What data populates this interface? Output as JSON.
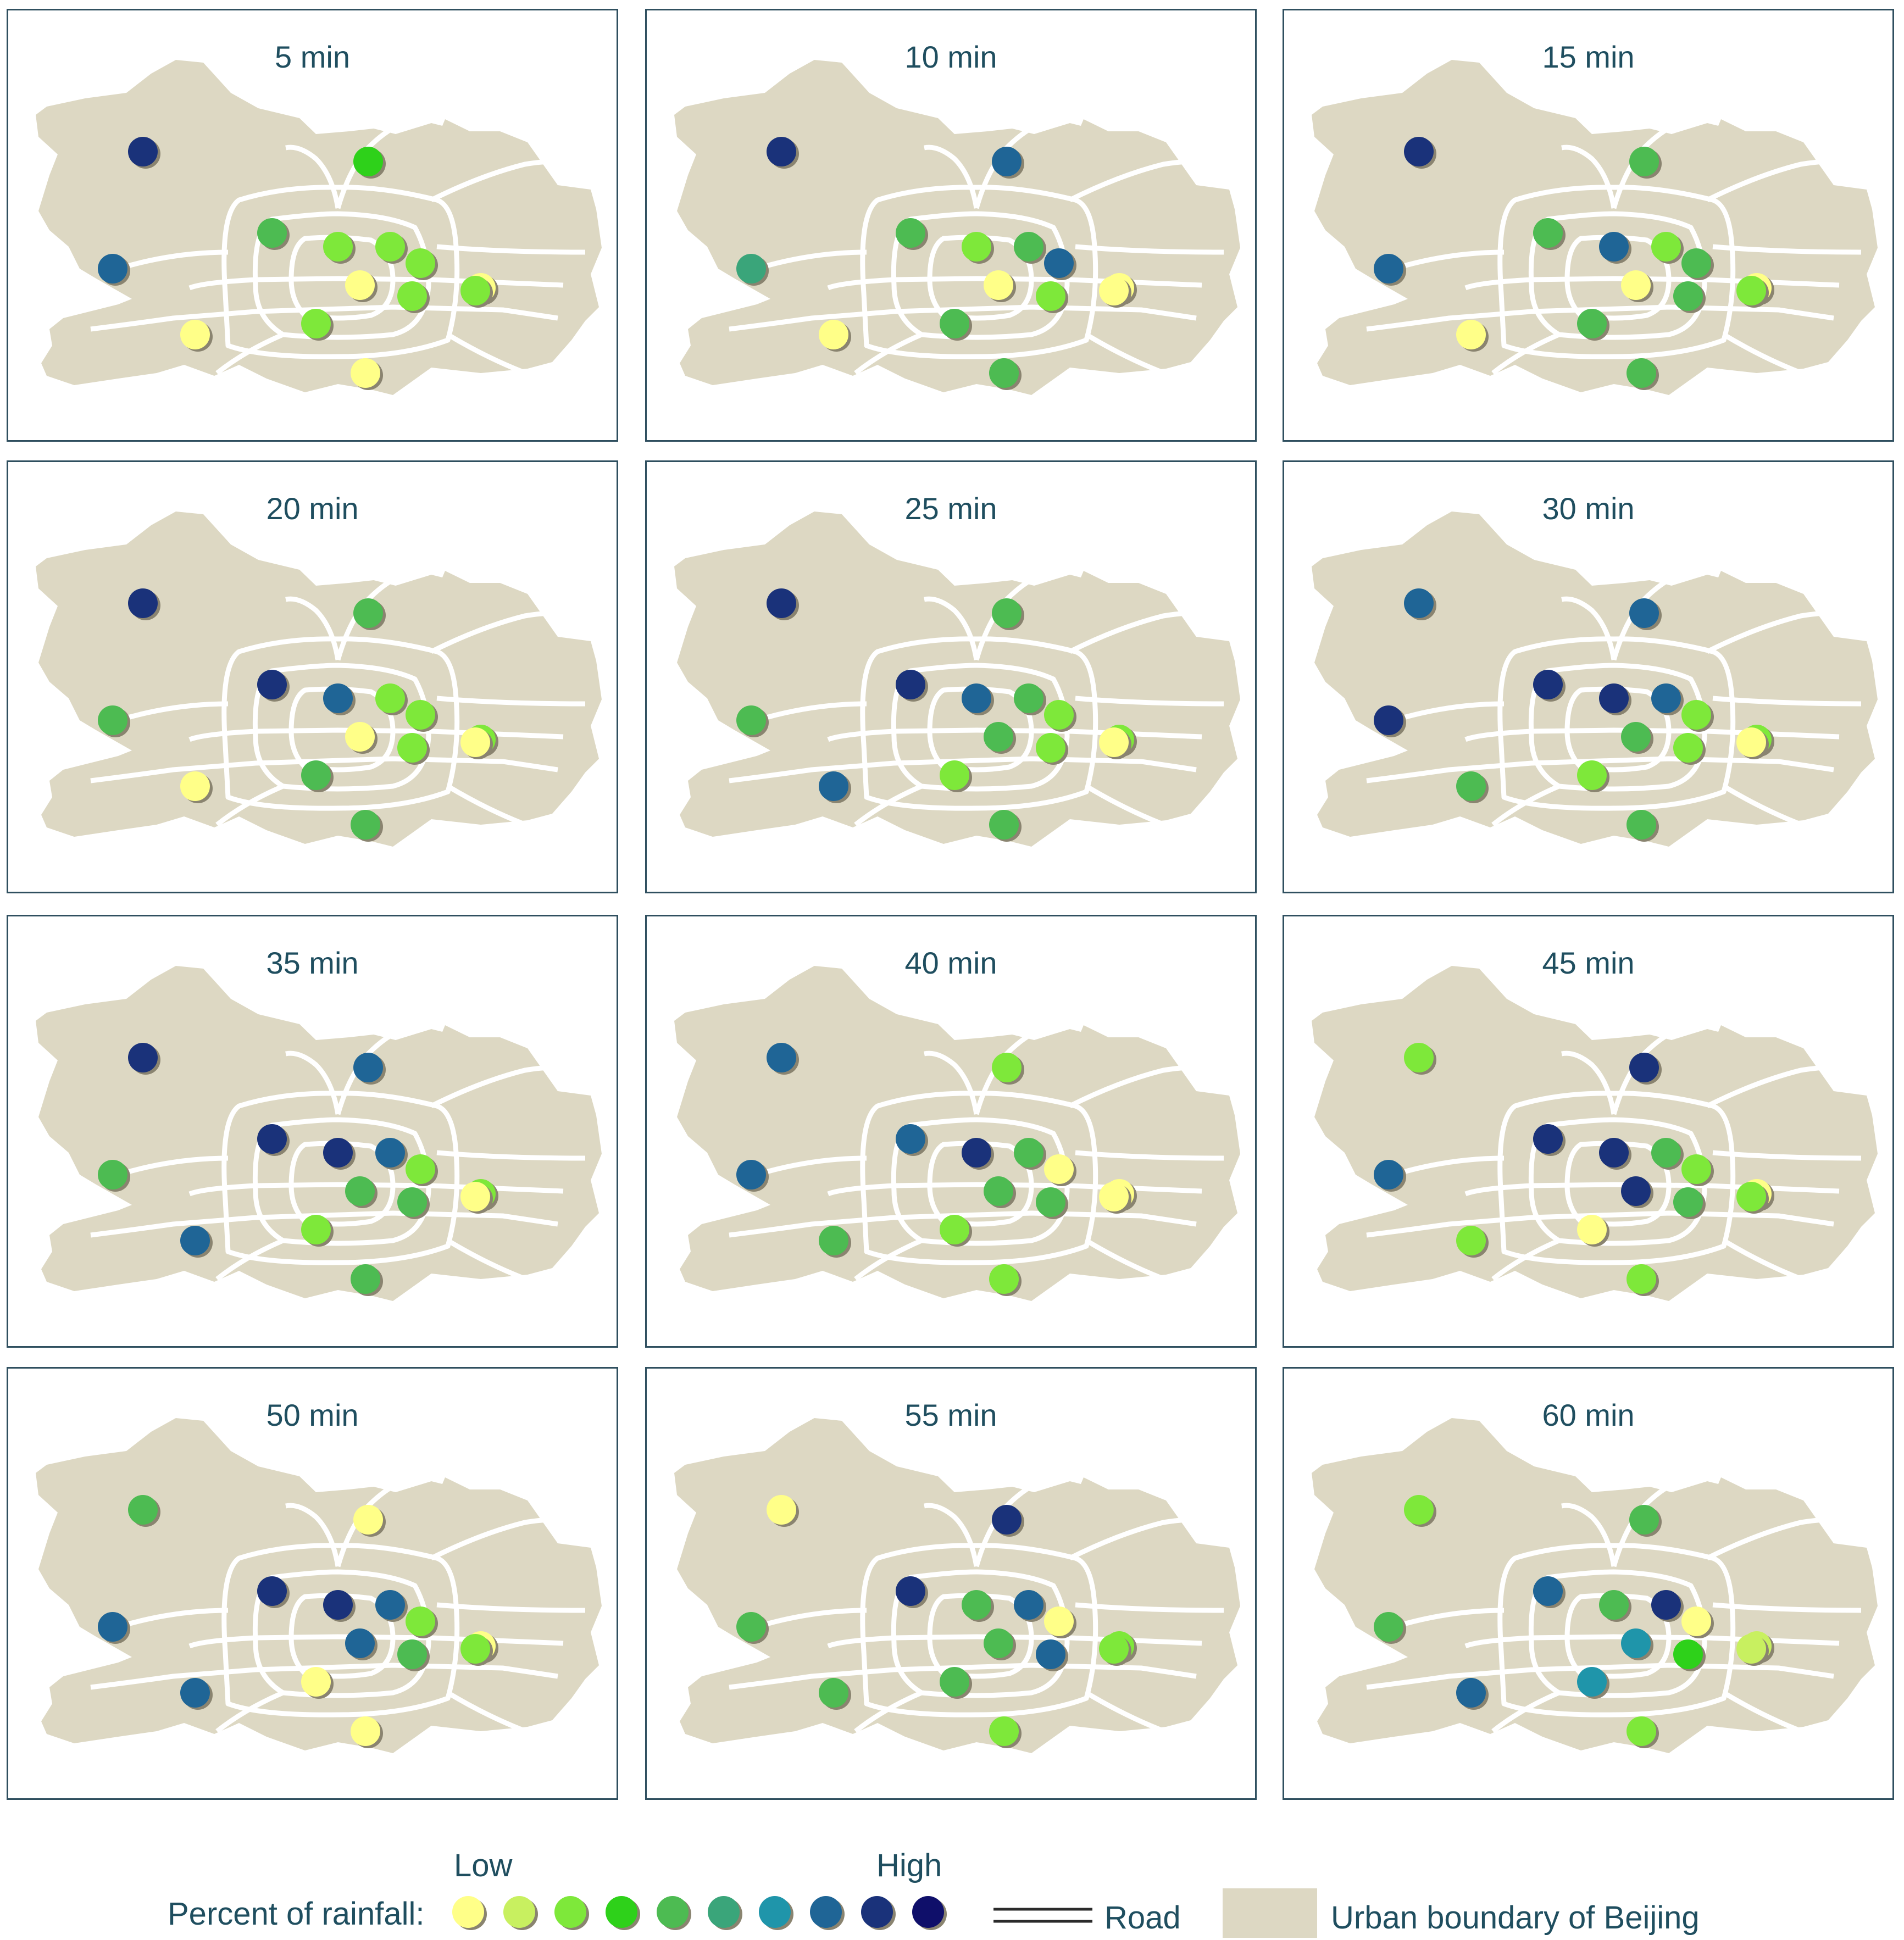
{
  "panels": [
    {
      "title": "5 min",
      "stations": [
        8,
        3,
        7,
        2,
        4,
        2,
        2,
        0,
        2,
        0,
        0,
        0,
        2,
        2
      ]
    },
    {
      "title": "10 min",
      "stations": [
        8,
        7,
        5,
        7,
        4,
        2,
        4,
        0,
        4,
        4,
        0,
        0,
        2,
        0
      ]
    },
    {
      "title": "15 min",
      "stations": [
        8,
        4,
        7,
        4,
        4,
        7,
        2,
        0,
        4,
        4,
        0,
        0,
        4,
        2
      ]
    },
    {
      "title": "20 min",
      "stations": [
        8,
        4,
        4,
        2,
        8,
        7,
        2,
        0,
        4,
        4,
        0,
        2,
        2,
        0
      ]
    },
    {
      "title": "25 min",
      "stations": [
        8,
        4,
        4,
        2,
        8,
        7,
        4,
        7,
        2,
        4,
        4,
        2,
        2,
        0
      ]
    },
    {
      "title": "30 min",
      "stations": [
        7,
        7,
        8,
        2,
        8,
        8,
        7,
        4,
        2,
        4,
        4,
        2,
        2,
        0
      ]
    },
    {
      "title": "35 min",
      "stations": [
        8,
        7,
        4,
        2,
        8,
        8,
        7,
        7,
        2,
        4,
        4,
        2,
        4,
        0
      ]
    },
    {
      "title": "40 min",
      "stations": [
        7,
        2,
        7,
        0,
        7,
        8,
        4,
        4,
        2,
        2,
        4,
        0,
        4,
        0
      ]
    },
    {
      "title": "45 min",
      "stations": [
        2,
        8,
        7,
        2,
        8,
        8,
        4,
        2,
        0,
        2,
        8,
        0,
        4,
        2
      ]
    },
    {
      "title": "50 min",
      "stations": [
        4,
        0,
        7,
        2,
        8,
        8,
        7,
        7,
        0,
        0,
        7,
        0,
        4,
        2
      ]
    },
    {
      "title": "55 min",
      "stations": [
        0,
        8,
        4,
        0,
        8,
        4,
        7,
        4,
        4,
        2,
        4,
        2,
        7,
        2
      ]
    },
    {
      "title": "60 min",
      "stations": [
        2,
        4,
        4,
        0,
        7,
        4,
        8,
        7,
        6,
        2,
        6,
        1,
        3,
        1
      ]
    }
  ],
  "legend": {
    "low_label": "Low",
    "high_label": "High",
    "percent_label": "Percent of rainfall:",
    "road_label": "Road",
    "urban_label": "Urban boundary of Beijing",
    "scale_colors": [
      "#ffff88",
      "#c8f060",
      "#7ee83a",
      "#2ed11a",
      "#4dbb52",
      "#3aa57a",
      "#1f95aa",
      "#1f6596",
      "#1a327a",
      "#0f0f6a"
    ]
  },
  "map_style": {
    "land_color": "#ddd8c3",
    "road_color": "#ffffff",
    "panel_border_color": "#2f4f5f",
    "title_color": "#1f4e5f"
  }
}
